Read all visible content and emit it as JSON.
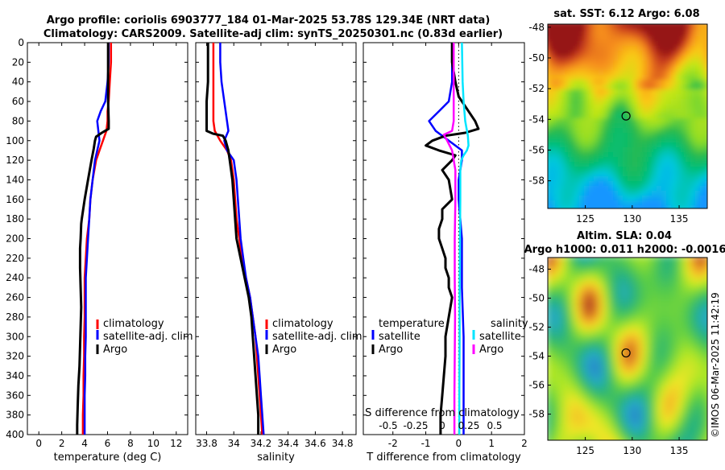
{
  "title_line1": "Argo profile: coriolis 6903777_184 01-Mar-2025 53.78S 129.34E (NRT data)",
  "title_line2": "Climatology: CARS2009. Satellite-adj clim: synTS_20250301.nc (0.83d earlier)",
  "watermark": "©IMOS 06-Mar-2025 11:42:19",
  "colors": {
    "climatology": "#ff0000",
    "satellite": "#0000ff",
    "argo": "#000000",
    "sat_salinity": "#00e5ff",
    "argo_salinity": "#ff00ff"
  },
  "chart_data": [
    {
      "type": "line",
      "id": "temperature",
      "xlabel": "temperature (deg C)",
      "xlim": [
        -1,
        13
      ],
      "xticks": [
        0,
        2,
        4,
        6,
        8,
        10,
        12
      ],
      "ylim": [
        0,
        400
      ],
      "yticks": [
        0,
        20,
        40,
        60,
        80,
        100,
        120,
        140,
        160,
        180,
        200,
        220,
        240,
        260,
        280,
        300,
        320,
        340,
        360,
        380,
        400
      ],
      "legend": [
        "climatology",
        "satellite-adj. clim",
        "Argo"
      ],
      "series": [
        {
          "name": "climatology",
          "color": "#ff0000",
          "depth": [
            0,
            20,
            40,
            60,
            70,
            80,
            90,
            100,
            110,
            120,
            140,
            160,
            180,
            200,
            220,
            240,
            260,
            280,
            300,
            320,
            340,
            360,
            380,
            400
          ],
          "values": [
            6.3,
            6.3,
            6.2,
            6.1,
            6.0,
            6.0,
            5.9,
            5.6,
            5.3,
            5.0,
            4.7,
            4.5,
            4.4,
            4.2,
            4.1,
            4.0,
            4.0,
            4.0,
            3.95,
            3.95,
            3.9,
            3.9,
            3.85,
            3.85
          ]
        },
        {
          "name": "satellite-adj. clim",
          "color": "#0000ff",
          "depth": [
            0,
            20,
            40,
            60,
            70,
            80,
            90,
            100,
            110,
            120,
            140,
            160,
            180,
            200,
            220,
            240,
            260,
            280,
            300,
            320,
            340,
            360,
            380,
            400
          ],
          "values": [
            6.1,
            6.1,
            6.0,
            5.8,
            5.4,
            5.1,
            5.2,
            5.3,
            5.1,
            4.9,
            4.7,
            4.5,
            4.4,
            4.3,
            4.2,
            4.1,
            4.1,
            4.1,
            4.1,
            4.05,
            4.05,
            4.0,
            4.0,
            4.0
          ]
        },
        {
          "name": "Argo",
          "color": "#000000",
          "depth": [
            0,
            20,
            40,
            60,
            80,
            88,
            92,
            96,
            100,
            108,
            120,
            140,
            160,
            180,
            185,
            200,
            210,
            215,
            230,
            250,
            270,
            290,
            310,
            330,
            350,
            370,
            390,
            400
          ],
          "values": [
            6.05,
            6.05,
            6.05,
            6.05,
            6.1,
            6.1,
            5.5,
            5.0,
            4.9,
            4.8,
            4.6,
            4.3,
            4.0,
            3.75,
            3.7,
            3.65,
            3.6,
            3.6,
            3.6,
            3.65,
            3.7,
            3.65,
            3.6,
            3.55,
            3.45,
            3.4,
            3.35,
            3.35
          ]
        }
      ]
    },
    {
      "type": "line",
      "id": "salinity",
      "xlabel": "salinity",
      "xlim": [
        33.72,
        34.9
      ],
      "xticks": [
        33.8,
        34,
        34.2,
        34.4,
        34.6,
        34.8
      ],
      "ylim": [
        0,
        400
      ],
      "legend": [
        "climatology",
        "satellite-adj. clim",
        "Argo"
      ],
      "series": [
        {
          "name": "climatology",
          "color": "#ff0000",
          "depth": [
            0,
            20,
            40,
            60,
            80,
            90,
            100,
            110,
            120,
            140,
            160,
            180,
            200,
            220,
            240,
            260,
            280,
            300,
            320,
            340,
            360,
            380,
            400
          ],
          "values": [
            33.85,
            33.85,
            33.85,
            33.85,
            33.85,
            33.86,
            33.9,
            33.95,
            33.98,
            34.0,
            34.01,
            34.02,
            34.04,
            34.06,
            34.09,
            34.12,
            34.14,
            34.16,
            34.17,
            34.18,
            34.19,
            34.2,
            34.21
          ]
        },
        {
          "name": "satellite-adj. clim",
          "color": "#0000ff",
          "depth": [
            0,
            20,
            40,
            60,
            80,
            90,
            100,
            110,
            120,
            140,
            160,
            180,
            200,
            220,
            240,
            260,
            280,
            300,
            320,
            340,
            360,
            380,
            400
          ],
          "values": [
            33.9,
            33.9,
            33.91,
            33.93,
            33.95,
            33.96,
            33.93,
            33.95,
            34.0,
            34.02,
            34.03,
            34.04,
            34.05,
            34.07,
            34.09,
            34.12,
            34.14,
            34.16,
            34.18,
            34.19,
            34.2,
            34.21,
            34.22
          ]
        },
        {
          "name": "Argo",
          "color": "#000000",
          "depth": [
            0,
            20,
            40,
            60,
            80,
            90,
            93,
            95,
            100,
            110,
            120,
            140,
            160,
            180,
            200,
            220,
            240,
            260,
            280,
            300,
            320,
            340,
            360,
            380,
            400
          ],
          "values": [
            33.81,
            33.81,
            33.81,
            33.8,
            33.8,
            33.8,
            33.85,
            33.92,
            33.94,
            33.96,
            33.97,
            33.99,
            34.0,
            34.01,
            34.02,
            34.05,
            34.08,
            34.11,
            34.13,
            34.14,
            34.15,
            34.16,
            34.17,
            34.18,
            34.18
          ]
        }
      ]
    },
    {
      "type": "line",
      "id": "difference",
      "xlabel": "T difference from climatology",
      "xlim": [
        -2.9,
        2.0
      ],
      "xticks": [
        -2,
        -1,
        0,
        1,
        2
      ],
      "secondary_xlabel": "S difference from climatology",
      "secondary_xticks": [
        "-0.5",
        "-0.25",
        "0",
        "0.25",
        "0.5"
      ],
      "ylim": [
        0,
        400
      ],
      "legend_titles": [
        "temperature",
        "salinity"
      ],
      "legend": [
        "satellite",
        "Argo",
        "satellite",
        "Argo"
      ],
      "series": [
        {
          "name": "temperature satellite",
          "color": "#0000ff",
          "depth": [
            0,
            40,
            60,
            70,
            80,
            90,
            100,
            110,
            120,
            140,
            160,
            200,
            250,
            300,
            350,
            400
          ],
          "values": [
            -0.2,
            -0.2,
            -0.3,
            -0.6,
            -0.9,
            -0.7,
            -0.3,
            0.1,
            0.1,
            0.0,
            0.0,
            0.1,
            0.1,
            0.15,
            0.15,
            0.15
          ]
        },
        {
          "name": "temperature Argo",
          "color": "#000000",
          "depth": [
            0,
            20,
            40,
            55,
            70,
            80,
            88,
            92,
            95,
            100,
            105,
            110,
            115,
            120,
            130,
            140,
            160,
            170,
            180,
            190,
            200,
            210,
            220,
            230,
            240,
            250,
            260,
            280,
            300,
            320,
            340,
            360,
            380,
            400
          ],
          "values": [
            -0.2,
            -0.2,
            -0.1,
            0.0,
            0.3,
            0.5,
            0.6,
            0.2,
            -0.4,
            -0.8,
            -1.0,
            -0.6,
            -0.1,
            -0.2,
            -0.5,
            -0.3,
            -0.2,
            -0.5,
            -0.5,
            -0.6,
            -0.6,
            -0.5,
            -0.4,
            -0.4,
            -0.3,
            -0.3,
            -0.2,
            -0.3,
            -0.4,
            -0.4,
            -0.45,
            -0.5,
            -0.55,
            -0.55
          ]
        },
        {
          "name": "salinity satellite",
          "color": "#00e5ff",
          "depth": [
            0,
            40,
            60,
            80,
            95,
            105,
            110,
            115,
            120,
            130,
            160,
            200,
            260,
            300,
            360,
            400
          ],
          "values": [
            0.1,
            0.12,
            0.15,
            0.2,
            0.28,
            0.3,
            0.25,
            0.15,
            0.08,
            0.05,
            0.05,
            0.04,
            0.03,
            0.03,
            0.02,
            0.02
          ]
        },
        {
          "name": "salinity Argo",
          "color": "#ff00ff",
          "depth": [
            0,
            40,
            60,
            80,
            90,
            94,
            100,
            110,
            130,
            160,
            200,
            240,
            280,
            320,
            360,
            400
          ],
          "values": [
            -0.15,
            -0.15,
            -0.15,
            -0.15,
            -0.2,
            -0.45,
            -0.35,
            -0.2,
            -0.1,
            -0.1,
            -0.12,
            -0.12,
            -0.11,
            -0.12,
            -0.13,
            -0.13
          ]
        }
      ]
    },
    {
      "type": "heatmap",
      "id": "sst_map",
      "title": "sat. SST: 6.12 Argo: 6.08",
      "xticks": [
        "125",
        "130",
        "135"
      ],
      "yticks": [
        "-48",
        "-50",
        "-52",
        "-54",
        "-56",
        "-58"
      ],
      "xlim": [
        121.0,
        138.0
      ],
      "ylim": [
        -59.8,
        -47.8
      ],
      "marker": {
        "lon": 129.34,
        "lat": -53.78
      }
    },
    {
      "type": "heatmap",
      "id": "sla_map",
      "title_line1": "Altim. SLA: 0.04",
      "title_line2": "Argo h1000: 0.011 h2000: -0.0016",
      "xticks": [
        "125",
        "130",
        "135"
      ],
      "yticks": [
        "-48",
        "-50",
        "-52",
        "-54",
        "-56",
        "-58"
      ],
      "xlim": [
        121.0,
        138.0
      ],
      "ylim": [
        -59.8,
        -47.2
      ],
      "marker": {
        "lon": 129.34,
        "lat": -53.78
      }
    }
  ]
}
